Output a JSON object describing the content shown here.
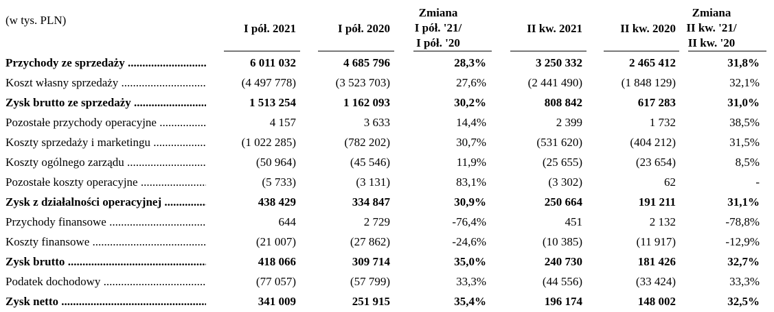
{
  "header": {
    "units": "(w tys. PLN)",
    "columns": [
      "I pół. 2021",
      "I pół. 2020",
      "Zmiana\nI pół. '21/\nI pół. '20",
      "II kw. 2021",
      "II kw. 2020",
      "Zmiana\nII kw. '21/\nII kw. '20"
    ]
  },
  "rows": [
    {
      "label": "Przychody ze sprzedaży",
      "bold": true,
      "values": [
        "6 011 032",
        "4 685 796",
        "28,3%",
        "3 250 332",
        "2 465 412",
        "31,8%"
      ]
    },
    {
      "label": "Koszt własny sprzedaży",
      "bold": false,
      "values": [
        "(4 497 778)",
        "(3 523 703)",
        "27,6%",
        "(2 441 490)",
        "(1 848 129)",
        "32,1%"
      ]
    },
    {
      "label": "Zysk brutto ze sprzedaży",
      "bold": true,
      "values": [
        "1 513 254",
        "1 162 093",
        "30,2%",
        "808 842",
        "617 283",
        "31,0%"
      ]
    },
    {
      "label": "Pozostałe przychody operacyjne",
      "bold": false,
      "values": [
        "4 157",
        "3 633",
        "14,4%",
        "2 399",
        "1 732",
        "38,5%"
      ]
    },
    {
      "label": "Koszty sprzedaży i marketingu",
      "bold": false,
      "values": [
        "(1 022 285)",
        "(782 202)",
        "30,7%",
        "(531 620)",
        "(404 212)",
        "31,5%"
      ]
    },
    {
      "label": "Koszty ogólnego zarządu",
      "bold": false,
      "values": [
        "(50 964)",
        "(45 546)",
        "11,9%",
        "(25 655)",
        "(23 654)",
        "8,5%"
      ]
    },
    {
      "label": "Pozostałe koszty operacyjne",
      "bold": false,
      "values": [
        "(5 733)",
        "(3 131)",
        "83,1%",
        "(3 302)",
        "62",
        "-"
      ]
    },
    {
      "label": "Zysk z działalności operacyjnej",
      "bold": true,
      "values": [
        "438 429",
        "334 847",
        "30,9%",
        "250 664",
        "191 211",
        "31,1%"
      ]
    },
    {
      "label": "Przychody finansowe",
      "bold": false,
      "values": [
        "644",
        "2 729",
        "-76,4%",
        "451",
        "2 132",
        "-78,8%"
      ]
    },
    {
      "label": "Koszty finansowe",
      "bold": false,
      "values": [
        "(21 007)",
        "(27 862)",
        "-24,6%",
        "(10 385)",
        "(11 917)",
        "-12,9%"
      ]
    },
    {
      "label": "Zysk brutto",
      "bold": true,
      "values": [
        "418 066",
        "309 714",
        "35,0%",
        "240 730",
        "181 426",
        "32,7%"
      ]
    },
    {
      "label": "Podatek dochodowy",
      "bold": false,
      "values": [
        "(77 057)",
        "(57 799)",
        "33,3%",
        "(44 556)",
        "(33 424)",
        "33,3%"
      ]
    },
    {
      "label": "Zysk netto",
      "bold": true,
      "values": [
        "341 009",
        "251 915",
        "35,4%",
        "196 174",
        "148 002",
        "32,5%"
      ]
    }
  ]
}
